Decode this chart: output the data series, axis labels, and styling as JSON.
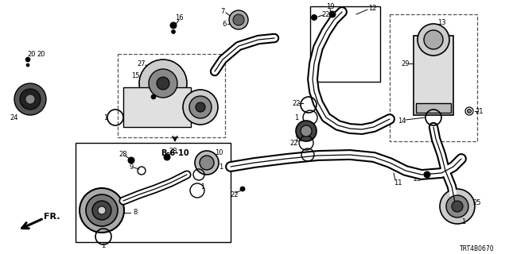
{
  "bg_color": "#ffffff",
  "diagram_code": "TRT4B0670",
  "fig_w": 6.4,
  "fig_h": 3.2,
  "dpi": 100
}
